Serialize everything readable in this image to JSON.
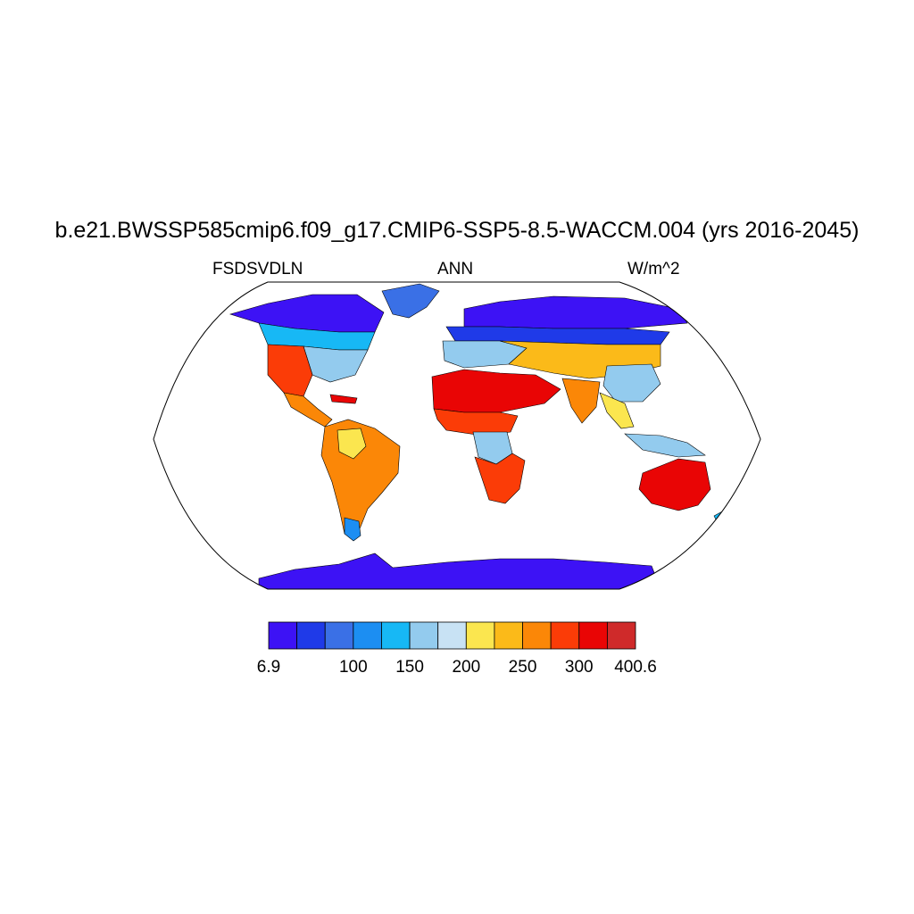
{
  "header": {
    "title": "b.e21.BWSSP585cmip6.f09_g17.CMIP6-SSP5-8.5-WACCM.004 (yrs 2016-2045)",
    "left_label": "FSDSVDLN",
    "center_label": "ANN",
    "right_label": "W/m^2"
  },
  "colorbar": {
    "colors": [
      "#3d12f5",
      "#1f3ae8",
      "#3a70e6",
      "#1c8ef2",
      "#17b8f5",
      "#93cbee",
      "#c8e2f4",
      "#fbe64f",
      "#fbba19",
      "#fb8707",
      "#fb3c07",
      "#e90505",
      "#cf2a2a"
    ],
    "labels": [
      "6.9",
      "100",
      "150",
      "200",
      "250",
      "300",
      "400.6"
    ]
  },
  "map": {
    "projection": "Robinson",
    "ocean_color": "#ffffff",
    "regions": [
      {
        "name": "greenland",
        "color": "#3a70e6"
      },
      {
        "name": "arctic-north-america",
        "color": "#3d12f5"
      },
      {
        "name": "boreal-north-america",
        "color": "#17b8f5"
      },
      {
        "name": "eastern-north-america",
        "color": "#93cbee"
      },
      {
        "name": "southwest-north-america",
        "color": "#fb3c07"
      },
      {
        "name": "central-america",
        "color": "#fb8707"
      },
      {
        "name": "caribbean",
        "color": "#e90505"
      },
      {
        "name": "south-america",
        "color": "#fb8707"
      },
      {
        "name": "amazon-cloudy",
        "color": "#fbe64f"
      },
      {
        "name": "patagonia",
        "color": "#1c8ef2"
      },
      {
        "name": "siberia",
        "color": "#3d12f5"
      },
      {
        "name": "eurasia-boreal",
        "color": "#1f3ae8"
      },
      {
        "name": "europe",
        "color": "#93cbee"
      },
      {
        "name": "central-asia",
        "color": "#fbba19"
      },
      {
        "name": "sahara-arabia",
        "color": "#e90505"
      },
      {
        "name": "sahel",
        "color": "#fb3c07"
      },
      {
        "name": "central-africa",
        "color": "#93cbee"
      },
      {
        "name": "southern-africa",
        "color": "#fb3c07"
      },
      {
        "name": "india",
        "color": "#fb8707"
      },
      {
        "name": "china",
        "color": "#93cbee"
      },
      {
        "name": "southeast-asia",
        "color": "#fbe64f"
      },
      {
        "name": "maritime-continent",
        "color": "#93cbee"
      },
      {
        "name": "australia",
        "color": "#e90505"
      },
      {
        "name": "new-zealand",
        "color": "#17b8f5"
      },
      {
        "name": "antarctica",
        "color": "#3d12f5"
      }
    ]
  }
}
